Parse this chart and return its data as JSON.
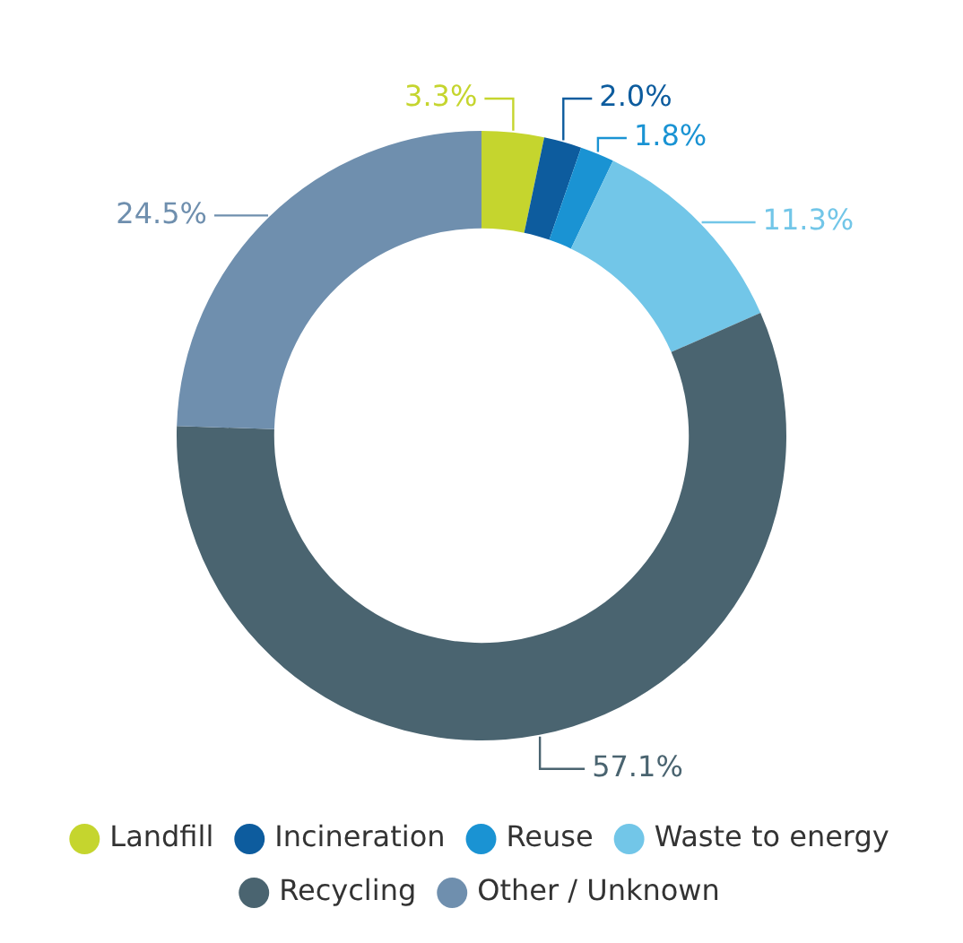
{
  "chart_data": {
    "type": "donut",
    "categories": [
      "Landfill",
      "Incineration",
      "Reuse",
      "Waste to energy",
      "Recycling",
      "Other / Unknown"
    ],
    "values": [
      3.3,
      2.0,
      1.8,
      11.3,
      57.1,
      24.5
    ],
    "colors": [
      "#c5d52e",
      "#0d5c9e",
      "#1a93d3",
      "#72c6e8",
      "#4a6470",
      "#6f8fae"
    ],
    "value_labels": [
      "3.3%",
      "2.0%",
      "1.8%",
      "11.3%",
      "57.1%",
      "24.5%"
    ],
    "legend": "bottom"
  }
}
